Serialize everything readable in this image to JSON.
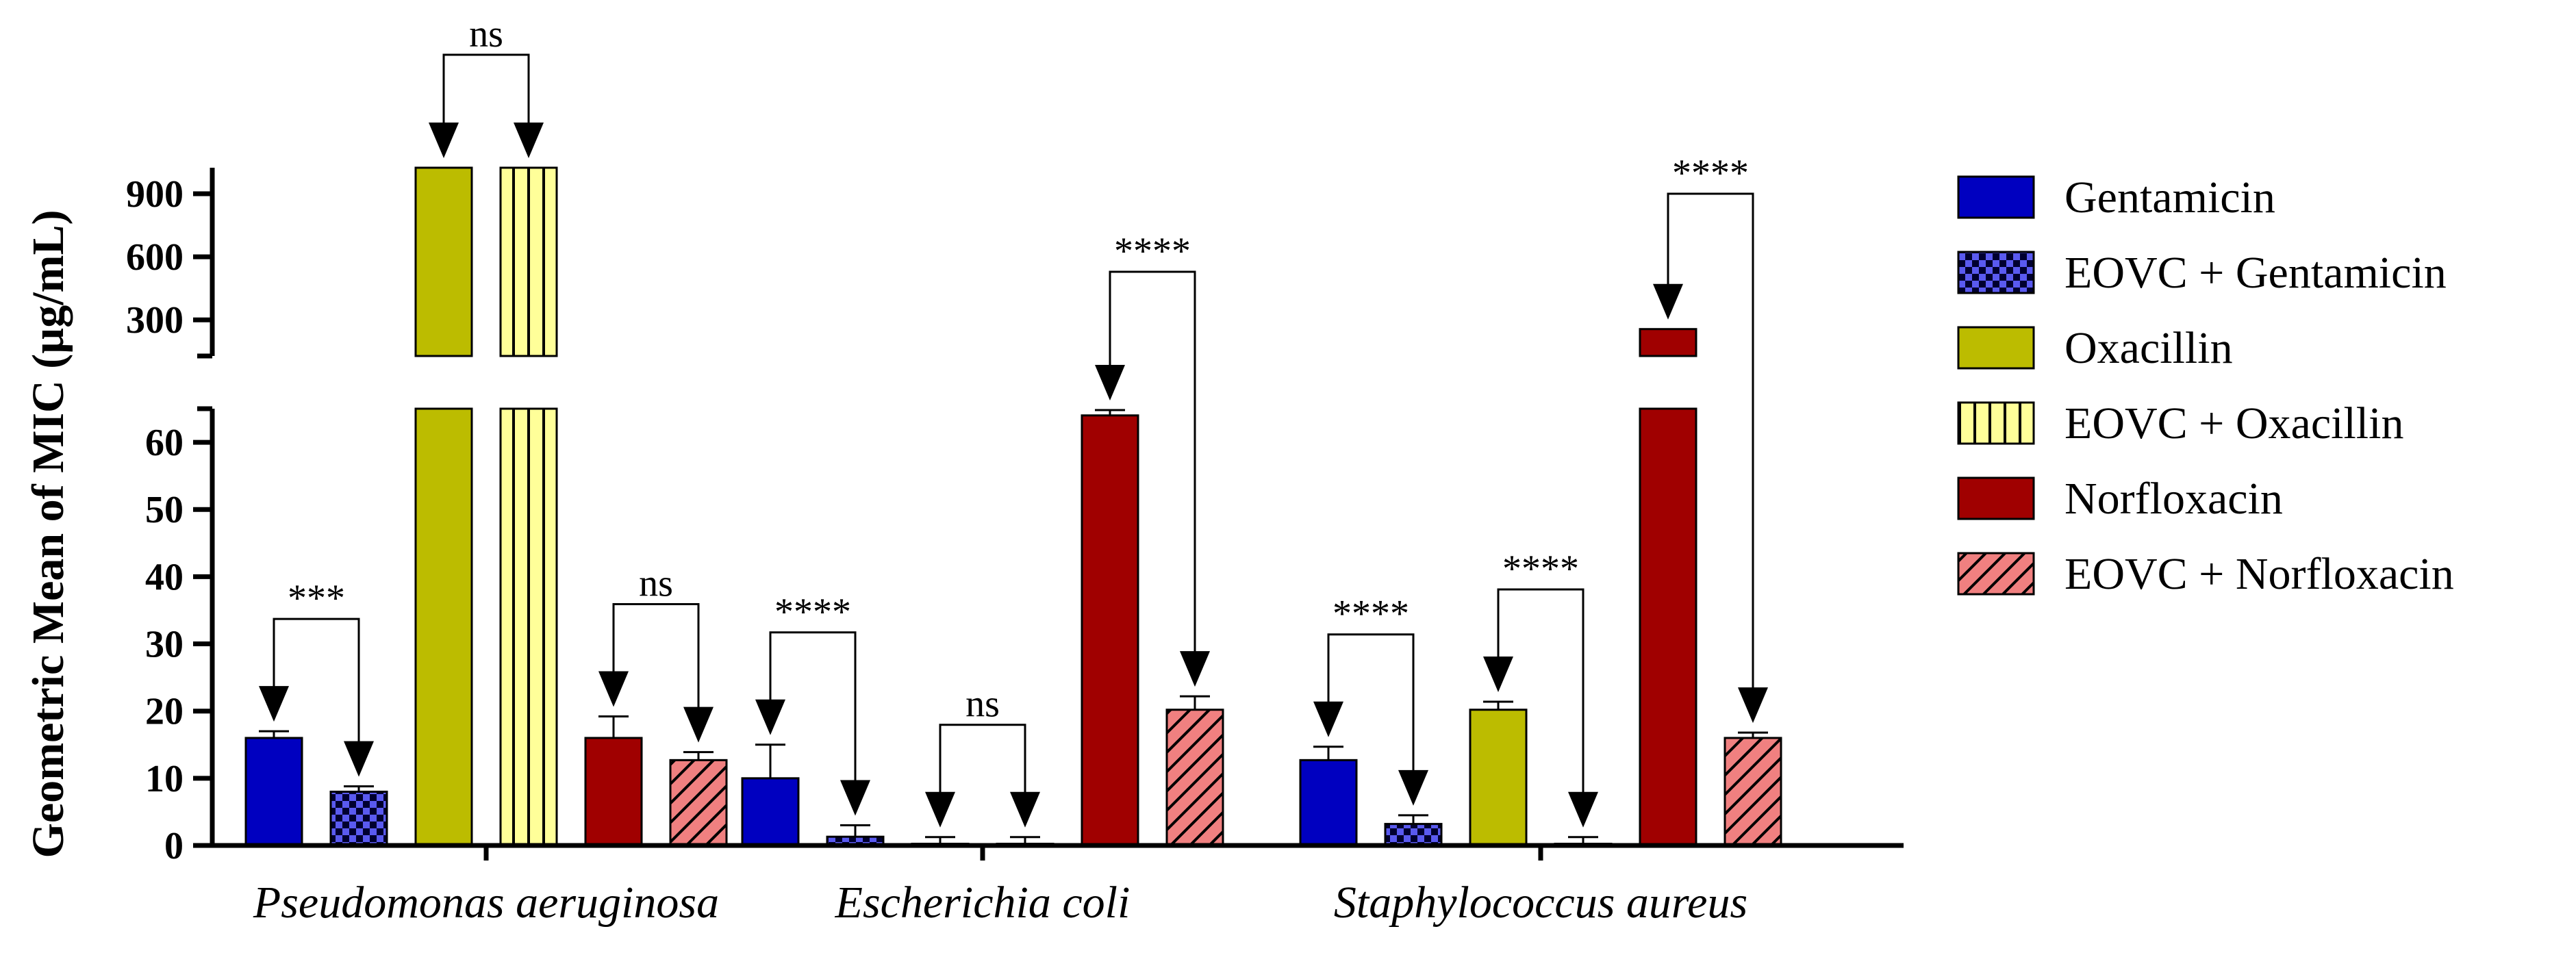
{
  "chart_data": {
    "type": "bar",
    "title": "",
    "xlabel": "",
    "ylabel": "Geometric Mean of MIC (µg/mL)",
    "categories": [
      "Pseudomonas aeruginosa",
      "Escherichia coli",
      "Staphylococcus aureus"
    ],
    "y_axis_lower": {
      "range": [
        0,
        65
      ],
      "ticks": [
        0,
        10,
        20,
        30,
        40,
        50,
        60
      ],
      "tick_labels": [
        "0",
        "10",
        "20",
        "30",
        "40",
        "50",
        "60"
      ]
    },
    "y_axis_upper": {
      "range": [
        128,
        1024
      ],
      "ticks": [
        300,
        600,
        900
      ],
      "tick_labels": [
        "300",
        "600",
        "900"
      ]
    },
    "series": [
      {
        "name": "Gentamicin",
        "color": "#0000c0",
        "pattern": "solid",
        "values": [
          16,
          10,
          12.7
        ],
        "errors": [
          1,
          5,
          2
        ]
      },
      {
        "name": "EOVC + Gentamicin",
        "color": "#5a5af0",
        "pattern": "checker",
        "values": [
          8,
          1.3,
          3.2
        ],
        "errors": [
          0.8,
          1.7,
          1.3
        ]
      },
      {
        "name": "Oxacillin",
        "color": "#bcbc00",
        "pattern": "solid",
        "values": [
          1024,
          0.25,
          20.2
        ],
        "errors": [
          0,
          1,
          1.2
        ]
      },
      {
        "name": "EOVC + Oxacillin",
        "color": "#ffff99",
        "pattern": "vertical-lines",
        "values": [
          1024,
          0.25,
          0.25
        ],
        "errors": [
          0,
          1,
          1
        ]
      },
      {
        "name": "Norfloxacin",
        "color": "#a00000",
        "pattern": "solid",
        "values": [
          16,
          64,
          256
        ],
        "errors": [
          3.2,
          0.8,
          0
        ]
      },
      {
        "name": "EOVC + Norfloxacin",
        "color": "#f08080",
        "pattern": "diagonal-lines",
        "values": [
          12.7,
          20.2,
          16
        ],
        "errors": [
          1.2,
          2,
          0.8
        ]
      }
    ],
    "annotations": [
      {
        "category": "Pseudomonas aeruginosa",
        "pair": [
          "Gentamicin",
          "EOVC + Gentamicin"
        ],
        "label": "***"
      },
      {
        "category": "Pseudomonas aeruginosa",
        "pair": [
          "Oxacillin",
          "EOVC + Oxacillin"
        ],
        "label": "ns"
      },
      {
        "category": "Pseudomonas aeruginosa",
        "pair": [
          "Norfloxacin",
          "EOVC + Norfloxacin"
        ],
        "label": "ns"
      },
      {
        "category": "Escherichia coli",
        "pair": [
          "Gentamicin",
          "EOVC + Gentamicin"
        ],
        "label": "****"
      },
      {
        "category": "Escherichia coli",
        "pair": [
          "Oxacillin",
          "EOVC + Oxacillin"
        ],
        "label": "ns"
      },
      {
        "category": "Escherichia coli",
        "pair": [
          "Norfloxacin",
          "EOVC + Norfloxacin"
        ],
        "label": "****"
      },
      {
        "category": "Staphylococcus aureus",
        "pair": [
          "Gentamicin",
          "EOVC + Gentamicin"
        ],
        "label": "****"
      },
      {
        "category": "Staphylococcus aureus",
        "pair": [
          "Oxacillin",
          "EOVC + Oxacillin"
        ],
        "label": "****"
      },
      {
        "category": "Staphylococcus aureus",
        "pair": [
          "Norfloxacin",
          "EOVC + Norfloxacin"
        ],
        "label": "****"
      }
    ],
    "legend_position": "right",
    "grid": false
  }
}
